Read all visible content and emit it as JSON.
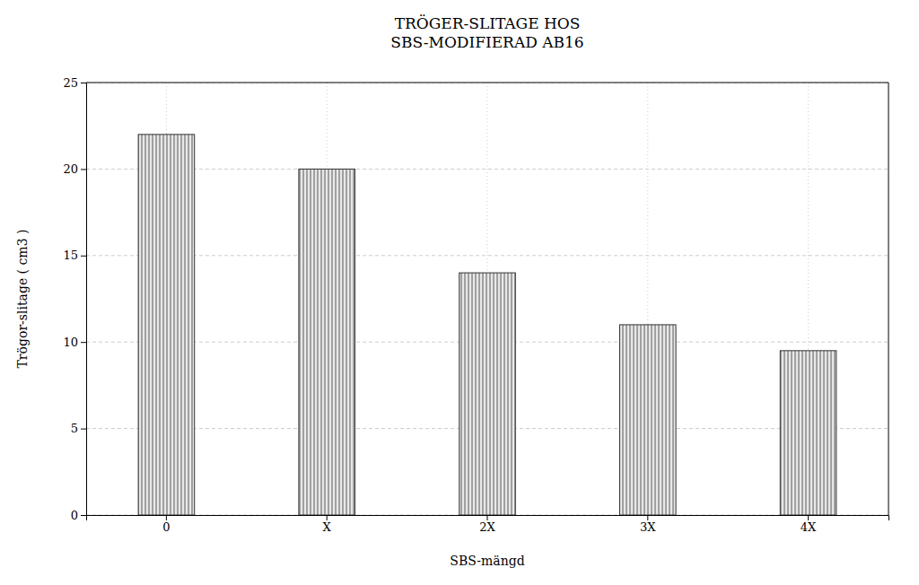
{
  "chart_data": {
    "type": "bar",
    "title": "TRÖGER-SLITAGE HOS\nSBS-MODIFIERAD AB16",
    "x_label": "SBS-mängd",
    "y_label": "Trögor-slitage ( cm3 )",
    "categories": [
      "0",
      "X",
      "2X",
      "3X",
      "4X"
    ],
    "values": [
      22.0,
      20.0,
      14.0,
      11.0,
      9.5
    ],
    "color": "#e8e8e8",
    "ylim": [
      0,
      25
    ],
    "yticks": [
      0,
      5,
      10,
      15,
      20,
      25
    ],
    "grid": true
  }
}
